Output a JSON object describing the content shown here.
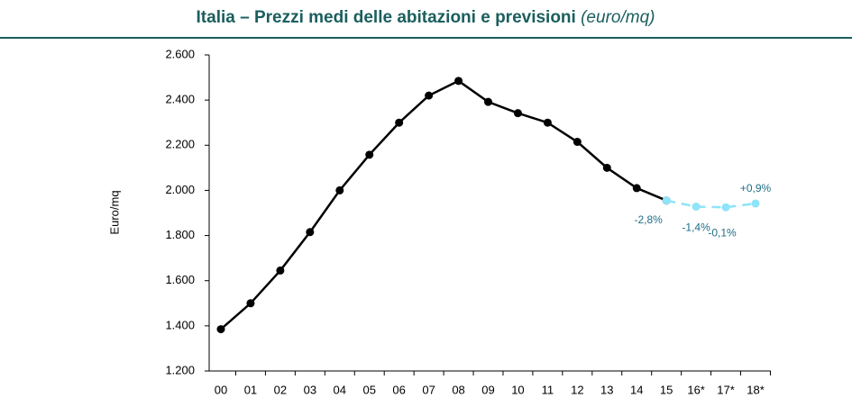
{
  "chart_data": {
    "type": "line",
    "title": "Italia – Prezzi medi delle abitazioni e previsioni",
    "title_unit": "(euro/mq)",
    "y_label": "Euro/mq",
    "categories": [
      "00",
      "01",
      "02",
      "03",
      "04",
      "05",
      "06",
      "07",
      "08",
      "09",
      "10",
      "11",
      "12",
      "13",
      "14",
      "15",
      "16*",
      "17*",
      "18*"
    ],
    "series": [
      {
        "name": "Prezzi",
        "color": "#000000",
        "dashed": false,
        "values": [
          1385,
          1500,
          1645,
          1815,
          2000,
          2158,
          2300,
          2420,
          2485,
          2392,
          2342,
          2300,
          2215,
          2100,
          2010,
          1955,
          null,
          null,
          null
        ]
      },
      {
        "name": "Previsioni",
        "color": "#8ee4f8",
        "dashed": true,
        "values": [
          null,
          null,
          null,
          null,
          null,
          null,
          null,
          null,
          null,
          null,
          null,
          null,
          null,
          null,
          null,
          1955,
          1928,
          1925,
          1942
        ]
      }
    ],
    "annotations": [
      "-2,8%",
      "-1,4%",
      "-0,1%",
      "+0,9%"
    ],
    "ylim": [
      1200,
      2600
    ],
    "yticks": [
      {
        "value": 1200,
        "label": "1.200"
      },
      {
        "value": 1400,
        "label": "1.400"
      },
      {
        "value": 1600,
        "label": "1.600"
      },
      {
        "value": 1800,
        "label": "1.800"
      },
      {
        "value": 2000,
        "label": "2.000"
      },
      {
        "value": 2200,
        "label": "2.200"
      },
      {
        "value": 2400,
        "label": "2.400"
      },
      {
        "value": 2600,
        "label": "2.600"
      }
    ]
  }
}
